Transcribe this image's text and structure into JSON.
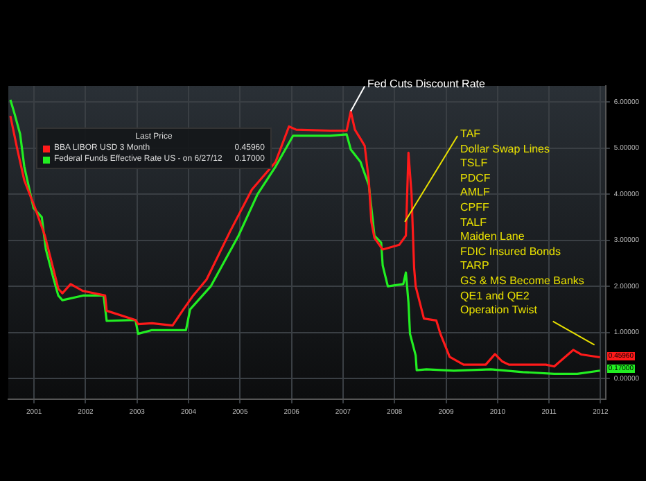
{
  "chart_data": {
    "type": "line",
    "xlim": [
      2001,
      2012.6
    ],
    "xticks": [
      {
        "value": 2001.5,
        "label": "2001"
      },
      {
        "value": 2002.5,
        "label": "2002"
      },
      {
        "value": 2003.5,
        "label": "2003"
      },
      {
        "value": 2004.5,
        "label": "2004"
      },
      {
        "value": 2005.5,
        "label": "2005"
      },
      {
        "value": 2006.5,
        "label": "2006"
      },
      {
        "value": 2007.5,
        "label": "2007"
      },
      {
        "value": 2008.5,
        "label": "2008"
      },
      {
        "value": 2009.5,
        "label": "2009"
      },
      {
        "value": 2010.5,
        "label": "2010"
      },
      {
        "value": 2011.5,
        "label": "2011"
      },
      {
        "value": 2012.5,
        "label": "2012"
      }
    ],
    "ylim": [
      -0.45,
      6.35
    ],
    "yticks": [
      {
        "value": 0,
        "label": "0.00000"
      },
      {
        "value": 1,
        "label": "1.00000"
      },
      {
        "value": 2,
        "label": "2.00000"
      },
      {
        "value": 3,
        "label": "3.00000"
      },
      {
        "value": 4,
        "label": "4.00000"
      },
      {
        "value": 5,
        "label": "5.00000"
      },
      {
        "value": 6,
        "label": "6.00000"
      }
    ],
    "grid": true,
    "legend": "top left",
    "legend_title": "Last Price",
    "series": [
      {
        "name": "BBA LIBOR USD 3 Month",
        "color": "#ff1a1a",
        "x": [
          2001.04,
          2001.17,
          2001.31,
          2001.52,
          2001.71,
          2001.87,
          2001.97,
          2002.05,
          2002.21,
          2002.45,
          2002.88,
          2002.91,
          2003.47,
          2003.52,
          2003.79,
          2004.19,
          2004.4,
          2004.59,
          2004.85,
          2005.31,
          2005.73,
          2006.19,
          2006.45,
          2006.59,
          2007.25,
          2007.57,
          2007.65,
          2007.73,
          2007.84,
          2007.92,
          2008.0,
          2008.05,
          2008.11,
          2008.27,
          2008.59,
          2008.72,
          2008.77,
          2008.83,
          2008.88,
          2008.91,
          2009.07,
          2009.31,
          2009.39,
          2009.57,
          2009.84,
          2010.27,
          2010.45,
          2010.59,
          2010.72,
          2011.44,
          2011.6,
          2011.97,
          2012.13,
          2012.49
        ],
        "values": [
          5.7,
          5.0,
          4.3,
          3.7,
          3.1,
          2.4,
          1.95,
          1.85,
          2.05,
          1.9,
          1.8,
          1.47,
          1.27,
          1.18,
          1.2,
          1.15,
          1.5,
          1.8,
          2.15,
          3.2,
          4.1,
          4.7,
          5.47,
          5.4,
          5.38,
          5.38,
          5.8,
          5.4,
          5.2,
          5.05,
          4.3,
          3.4,
          3.05,
          2.8,
          2.9,
          3.1,
          4.9,
          4.0,
          2.4,
          2.0,
          1.3,
          1.26,
          0.97,
          0.47,
          0.3,
          0.3,
          0.53,
          0.37,
          0.3,
          0.3,
          0.26,
          0.62,
          0.52,
          0.4596
        ],
        "value_labels": [
          null,
          null,
          null,
          null,
          null,
          null,
          null,
          null,
          null,
          null,
          null,
          null,
          null,
          null,
          null,
          null,
          null,
          null,
          null,
          null,
          null,
          null,
          null,
          null,
          null,
          null,
          null,
          null,
          null,
          null,
          null,
          null,
          null,
          null,
          null,
          null,
          null,
          null,
          null,
          null,
          null,
          null,
          null,
          null,
          null,
          null,
          null,
          null,
          null,
          null,
          null,
          null,
          null,
          "0.45960"
        ]
      },
      {
        "name": "Federal Funds Effective Rate US -  on 6/27/12",
        "color": "#22ee22",
        "x": [
          2001.04,
          2001.12,
          2001.23,
          2001.31,
          2001.49,
          2001.65,
          2001.73,
          2001.87,
          2001.97,
          2002.05,
          2002.45,
          2002.85,
          2002.91,
          2003.47,
          2003.52,
          2003.79,
          2004.45,
          2004.53,
          2004.93,
          2005.47,
          2005.84,
          2006.19,
          2006.53,
          2007.25,
          2007.57,
          2007.65,
          2007.84,
          2007.87,
          2008.0,
          2008.11,
          2008.24,
          2008.27,
          2008.37,
          2008.67,
          2008.72,
          2008.77,
          2008.8,
          2008.91,
          2008.93,
          2009.12,
          2009.65,
          2010.37,
          2010.99,
          2011.6,
          2012.05,
          2012.49
        ],
        "values": [
          6.05,
          5.75,
          5.3,
          4.6,
          3.7,
          3.5,
          2.8,
          2.2,
          1.8,
          1.7,
          1.8,
          1.8,
          1.25,
          1.27,
          0.97,
          1.05,
          1.05,
          1.5,
          2.0,
          3.1,
          4.0,
          4.6,
          5.27,
          5.27,
          5.3,
          4.97,
          4.7,
          4.6,
          4.2,
          3.1,
          2.95,
          2.45,
          2.0,
          2.05,
          2.3,
          1.65,
          0.97,
          0.5,
          0.18,
          0.2,
          0.17,
          0.2,
          0.14,
          0.1,
          0.1,
          0.17
        ],
        "value_labels": [
          null,
          null,
          null,
          null,
          null,
          null,
          null,
          null,
          null,
          null,
          null,
          null,
          null,
          null,
          null,
          null,
          null,
          null,
          null,
          null,
          null,
          null,
          null,
          null,
          null,
          null,
          null,
          null,
          null,
          null,
          null,
          null,
          null,
          null,
          null,
          null,
          null,
          null,
          null,
          null,
          null,
          null,
          null,
          null,
          null,
          "0.17000"
        ]
      }
    ],
    "annotations": [
      {
        "text": "Fed Cuts Discount Rate",
        "x": 2007.65,
        "y": 5.8
      },
      {
        "text": "TAF",
        "x": 2008.7,
        "y": 3.4
      },
      "Dollar Swap Lines",
      "TSLF",
      "PDCF",
      "AMLF",
      "CPFF",
      "TALF",
      "Maiden Lane",
      "FDIC Insured Bonds",
      "TARP",
      "GS & MS Become Banks",
      "QE1 and QE2",
      "Operation Twist"
    ]
  }
}
